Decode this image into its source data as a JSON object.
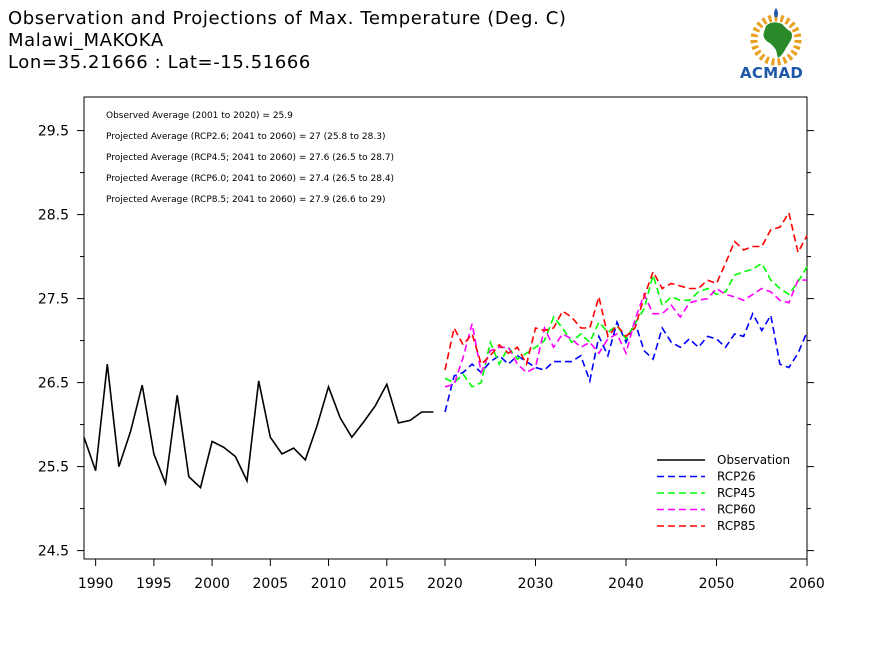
{
  "header": {
    "title": "Observation and Projections of Max. Temperature (Deg. C)",
    "location": "Malawi_MAKOKA",
    "coords": "Lon=35.21666 : Lat=-15.51666"
  },
  "logo": {
    "text": "ACMAD"
  },
  "colors": {
    "observation": "#000000",
    "rcp26": "#0000ff",
    "rcp45": "#00ff00",
    "rcp60": "#ff00ff",
    "rcp85": "#ff0000"
  },
  "chart_data": {
    "type": "line",
    "x_range": [
      1989,
      2060
    ],
    "ylim": [
      24.4,
      29.9
    ],
    "x_ticks": [
      1990,
      1995,
      2000,
      2005,
      2010,
      2015,
      2020,
      2030,
      2040,
      2050,
      2060
    ],
    "y_ticks": [
      24.5,
      25.5,
      26.5,
      27.5,
      28.5,
      29.5
    ],
    "y_tick_labels": [
      "24.5",
      "25.5",
      "26.5",
      "27.5",
      "28.5",
      "29.5"
    ],
    "annotations": [
      "Observed Average (2001 to 2020) = 25.9",
      "Projected Average (RCP2.6; 2041 to 2060) = 27 (25.8 to 28.3)",
      "Projected Average (RCP4.5; 2041 to 2060) = 27.6 (26.5 to 28.7)",
      "Projected Average (RCP6.0; 2041 to 2060) = 27.4 (26.5 to 28.4)",
      "Projected Average (RCP8.5; 2041 to 2060) = 27.9 (26.6 to 29)"
    ],
    "legend_position": "bottom-right",
    "series": [
      {
        "name": "Observation",
        "key": "observation",
        "dashed": false,
        "x": [
          1989,
          1990,
          1991,
          1992,
          1993,
          1994,
          1995,
          1996,
          1997,
          1998,
          1999,
          2000,
          2001,
          2002,
          2003,
          2004,
          2005,
          2006,
          2007,
          2008,
          2009,
          2010,
          2011,
          2012,
          2013,
          2014,
          2015,
          2016,
          2017,
          2018,
          2019
        ],
        "y": [
          25.85,
          25.45,
          26.72,
          25.5,
          25.92,
          26.47,
          25.65,
          25.3,
          26.35,
          25.38,
          25.25,
          25.8,
          25.73,
          25.62,
          25.33,
          26.52,
          25.85,
          25.65,
          25.72,
          25.58,
          25.98,
          26.45,
          26.08,
          25.85,
          26.03,
          26.22,
          26.48,
          26.02,
          26.05,
          26.15,
          26.15
        ]
      },
      {
        "name": "RCP26",
        "key": "rcp26",
        "dashed": true,
        "x": [
          2020,
          2021,
          2022,
          2023,
          2024,
          2025,
          2026,
          2027,
          2028,
          2029,
          2030,
          2031,
          2032,
          2033,
          2034,
          2035,
          2036,
          2037,
          2038,
          2039,
          2040,
          2041,
          2042,
          2043,
          2044,
          2045,
          2046,
          2047,
          2048,
          2049,
          2050,
          2051,
          2052,
          2053,
          2054,
          2055,
          2056,
          2057,
          2058,
          2059,
          2060
        ],
        "y": [
          26.15,
          26.58,
          26.62,
          26.72,
          26.62,
          26.75,
          26.82,
          26.72,
          26.82,
          26.75,
          26.68,
          26.65,
          26.75,
          26.75,
          26.75,
          26.82,
          26.52,
          27.05,
          26.82,
          27.22,
          26.98,
          27.22,
          26.88,
          26.78,
          27.15,
          26.98,
          26.92,
          27.02,
          26.92,
          27.05,
          27.02,
          26.92,
          27.08,
          27.05,
          27.32,
          27.12,
          27.3,
          26.72,
          26.68,
          26.85,
          27.1
        ]
      },
      {
        "name": "RCP45",
        "key": "rcp45",
        "dashed": true,
        "x": [
          2020,
          2021,
          2022,
          2023,
          2024,
          2025,
          2026,
          2027,
          2028,
          2029,
          2030,
          2031,
          2032,
          2033,
          2034,
          2035,
          2036,
          2037,
          2038,
          2039,
          2040,
          2041,
          2042,
          2043,
          2044,
          2045,
          2046,
          2047,
          2048,
          2049,
          2050,
          2051,
          2052,
          2053,
          2054,
          2055,
          2056,
          2057,
          2058,
          2059,
          2060
        ],
        "y": [
          26.55,
          26.5,
          26.6,
          26.45,
          26.5,
          26.98,
          26.72,
          26.92,
          26.78,
          26.85,
          26.92,
          27.0,
          27.28,
          27.15,
          26.98,
          27.08,
          26.98,
          27.22,
          27.1,
          27.18,
          27.02,
          27.2,
          27.38,
          27.78,
          27.42,
          27.52,
          27.48,
          27.48,
          27.58,
          27.62,
          27.55,
          27.58,
          27.78,
          27.82,
          27.85,
          27.92,
          27.72,
          27.62,
          27.55,
          27.7,
          27.88
        ]
      },
      {
        "name": "RCP60",
        "key": "rcp60",
        "dashed": true,
        "x": [
          2020,
          2021,
          2022,
          2023,
          2024,
          2025,
          2026,
          2027,
          2028,
          2029,
          2030,
          2031,
          2032,
          2033,
          2034,
          2035,
          2036,
          2037,
          2038,
          2039,
          2040,
          2041,
          2042,
          2043,
          2044,
          2045,
          2046,
          2047,
          2048,
          2049,
          2050,
          2051,
          2052,
          2053,
          2054,
          2055,
          2056,
          2057,
          2058,
          2059,
          2060
        ],
        "y": [
          26.45,
          26.48,
          26.8,
          27.2,
          26.62,
          26.88,
          26.92,
          26.92,
          26.72,
          26.62,
          26.68,
          27.15,
          26.92,
          27.08,
          27.02,
          26.92,
          26.98,
          26.85,
          27.02,
          27.08,
          26.85,
          27.25,
          27.55,
          27.32,
          27.32,
          27.42,
          27.28,
          27.45,
          27.48,
          27.5,
          27.62,
          27.55,
          27.52,
          27.48,
          27.55,
          27.62,
          27.58,
          27.48,
          27.45,
          27.72,
          27.72
        ]
      },
      {
        "name": "RCP85",
        "key": "rcp85",
        "dashed": true,
        "x": [
          2020,
          2021,
          2022,
          2023,
          2024,
          2025,
          2026,
          2027,
          2028,
          2029,
          2030,
          2031,
          2032,
          2033,
          2034,
          2035,
          2036,
          2037,
          2038,
          2039,
          2040,
          2041,
          2042,
          2043,
          2044,
          2045,
          2046,
          2047,
          2048,
          2049,
          2050,
          2051,
          2052,
          2053,
          2054,
          2055,
          2056,
          2057,
          2058,
          2059,
          2060
        ],
        "y": [
          26.65,
          27.15,
          26.95,
          27.08,
          26.72,
          26.82,
          26.95,
          26.85,
          26.92,
          26.72,
          27.15,
          27.12,
          27.15,
          27.35,
          27.28,
          27.15,
          27.15,
          27.52,
          27.05,
          27.18,
          27.05,
          27.15,
          27.52,
          27.82,
          27.62,
          27.68,
          27.65,
          27.62,
          27.62,
          27.72,
          27.68,
          27.92,
          28.18,
          28.08,
          28.12,
          28.12,
          28.32,
          28.35,
          28.52,
          28.05,
          28.25
        ]
      }
    ]
  }
}
